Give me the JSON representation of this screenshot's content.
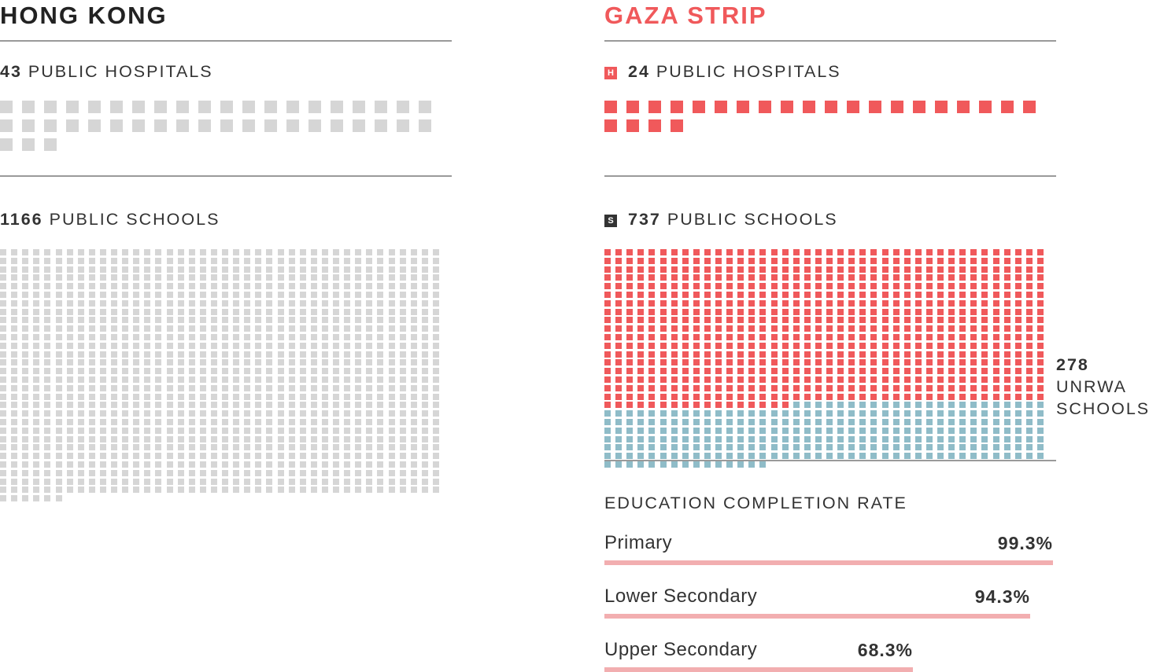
{
  "colors": {
    "gray_square": "#d6d6d6",
    "gaza_red": "#f0595b",
    "unrwa_blue": "#8fbcc8",
    "bar_pink": "#f2aeb0",
    "hk_title": "#222222",
    "badge_h": "#f0595b",
    "badge_s": "#333333"
  },
  "hong_kong": {
    "title": "HONG KONG",
    "hospitals": {
      "count": "43",
      "label": "PUBLIC HOSPITALS"
    },
    "schools": {
      "count": "1166",
      "label": "PUBLIC SCHOOLS"
    }
  },
  "gaza": {
    "title": "GAZA STRIP",
    "hospitals": {
      "badge": "H",
      "count": "24",
      "label": "PUBLIC HOSPITALS"
    },
    "schools": {
      "badge": "S",
      "count": "737",
      "label": "PUBLIC SCHOOLS"
    },
    "unrwa": {
      "count": "278",
      "line1": "UNRWA",
      "line2": "SCHOOLS"
    },
    "education": {
      "title": "EDUCATION COMPLETION RATE"
    }
  },
  "chart_data": [
    {
      "type": "waffle",
      "title": "HONG KONG",
      "series": [
        {
          "name": "PUBLIC HOSPITALS",
          "values": [
            43
          ]
        },
        {
          "name": "PUBLIC SCHOOLS",
          "values": [
            1166
          ]
        }
      ]
    },
    {
      "type": "waffle",
      "title": "GAZA STRIP",
      "series": [
        {
          "name": "PUBLIC HOSPITALS",
          "values": [
            24
          ]
        },
        {
          "name": "PUBLIC SCHOOLS",
          "values": [
            737
          ]
        },
        {
          "name": "UNRWA SCHOOLS",
          "values": [
            278
          ]
        }
      ]
    },
    {
      "type": "bar",
      "title": "EDUCATION COMPLETION RATE",
      "categories": [
        "Primary",
        "Lower Secondary",
        "Upper Secondary"
      ],
      "values": [
        99.3,
        94.3,
        68.3
      ],
      "value_labels": [
        "99.3%",
        "94.3%",
        "68.3%"
      ],
      "xlim": [
        0,
        100
      ]
    }
  ]
}
